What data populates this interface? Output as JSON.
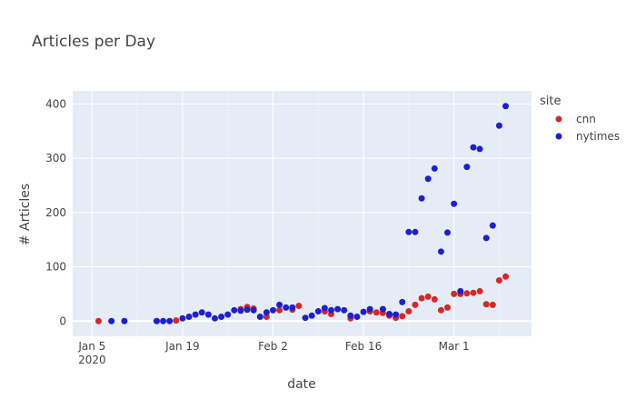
{
  "chart_data": {
    "type": "scatter",
    "title": "Articles per Day",
    "xlabel": "date",
    "ylabel": "# Articles",
    "x_ticks": [
      {
        "date": "2020-01-05",
        "label": "Jan 5",
        "sublabel": "2020"
      },
      {
        "date": "2020-01-19",
        "label": "Jan 19",
        "sublabel": ""
      },
      {
        "date": "2020-02-02",
        "label": "Feb 2",
        "sublabel": ""
      },
      {
        "date": "2020-02-16",
        "label": "Feb 16",
        "sublabel": ""
      },
      {
        "date": "2020-03-01",
        "label": "Mar 1",
        "sublabel": ""
      }
    ],
    "y_ticks": [
      0,
      100,
      200,
      300,
      400
    ],
    "xlim": [
      "2020-01-02",
      "2020-03-13"
    ],
    "ylim": [
      -28,
      424
    ],
    "grid": true,
    "legend": {
      "title": "site",
      "position": "right"
    },
    "series": [
      {
        "name": "cnn",
        "color": "#d62728",
        "points": [
          [
            "2020-01-06",
            0
          ],
          [
            "2020-01-15",
            0
          ],
          [
            "2020-01-18",
            1
          ],
          [
            "2020-01-28",
            22
          ],
          [
            "2020-01-29",
            26
          ],
          [
            "2020-01-30",
            23
          ],
          [
            "2020-02-01",
            8
          ],
          [
            "2020-02-03",
            20
          ],
          [
            "2020-02-05",
            21
          ],
          [
            "2020-02-06",
            28
          ],
          [
            "2020-02-10",
            18
          ],
          [
            "2020-02-11",
            13
          ],
          [
            "2020-02-14",
            5
          ],
          [
            "2020-02-17",
            18
          ],
          [
            "2020-02-18",
            16
          ],
          [
            "2020-02-19",
            15
          ],
          [
            "2020-02-20",
            10
          ],
          [
            "2020-02-21",
            6
          ],
          [
            "2020-02-22",
            9
          ],
          [
            "2020-02-23",
            18
          ],
          [
            "2020-02-24",
            30
          ],
          [
            "2020-02-25",
            42
          ],
          [
            "2020-02-26",
            45
          ],
          [
            "2020-02-27",
            40
          ],
          [
            "2020-02-28",
            20
          ],
          [
            "2020-02-29",
            25
          ],
          [
            "2020-03-01",
            50
          ],
          [
            "2020-03-02",
            50
          ],
          [
            "2020-03-03",
            51
          ],
          [
            "2020-03-04",
            52
          ],
          [
            "2020-03-05",
            55
          ],
          [
            "2020-03-06",
            31
          ],
          [
            "2020-03-07",
            30
          ],
          [
            "2020-03-08",
            75
          ],
          [
            "2020-03-09",
            82
          ]
        ]
      },
      {
        "name": "nytimes",
        "color": "#1f1fcf",
        "points": [
          [
            "2020-01-08",
            0
          ],
          [
            "2020-01-10",
            0
          ],
          [
            "2020-01-15",
            0
          ],
          [
            "2020-01-16",
            0
          ],
          [
            "2020-01-17",
            0
          ],
          [
            "2020-01-19",
            5
          ],
          [
            "2020-01-20",
            8
          ],
          [
            "2020-01-21",
            12
          ],
          [
            "2020-01-22",
            16
          ],
          [
            "2020-01-23",
            12
          ],
          [
            "2020-01-24",
            5
          ],
          [
            "2020-01-25",
            8
          ],
          [
            "2020-01-26",
            12
          ],
          [
            "2020-01-27",
            20
          ],
          [
            "2020-01-28",
            19
          ],
          [
            "2020-01-29",
            21
          ],
          [
            "2020-01-30",
            20
          ],
          [
            "2020-01-31",
            8
          ],
          [
            "2020-02-01",
            16
          ],
          [
            "2020-02-02",
            20
          ],
          [
            "2020-02-03",
            30
          ],
          [
            "2020-02-04",
            25
          ],
          [
            "2020-02-05",
            25
          ],
          [
            "2020-02-07",
            6
          ],
          [
            "2020-02-08",
            10
          ],
          [
            "2020-02-09",
            18
          ],
          [
            "2020-02-10",
            24
          ],
          [
            "2020-02-11",
            20
          ],
          [
            "2020-02-12",
            22
          ],
          [
            "2020-02-13",
            20
          ],
          [
            "2020-02-14",
            10
          ],
          [
            "2020-02-15",
            8
          ],
          [
            "2020-02-16",
            17
          ],
          [
            "2020-02-17",
            22
          ],
          [
            "2020-02-19",
            22
          ],
          [
            "2020-02-20",
            13
          ],
          [
            "2020-02-21",
            12
          ],
          [
            "2020-02-22",
            35
          ],
          [
            "2020-02-23",
            164
          ],
          [
            "2020-02-24",
            164
          ],
          [
            "2020-02-25",
            226
          ],
          [
            "2020-02-26",
            262
          ],
          [
            "2020-02-27",
            281
          ],
          [
            "2020-02-28",
            128
          ],
          [
            "2020-02-29",
            163
          ],
          [
            "2020-03-01",
            216
          ],
          [
            "2020-03-02",
            55
          ],
          [
            "2020-03-03",
            284
          ],
          [
            "2020-03-04",
            320
          ],
          [
            "2020-03-05",
            317
          ],
          [
            "2020-03-06",
            153
          ],
          [
            "2020-03-07",
            176
          ],
          [
            "2020-03-08",
            360
          ],
          [
            "2020-03-09",
            396
          ]
        ]
      }
    ]
  }
}
